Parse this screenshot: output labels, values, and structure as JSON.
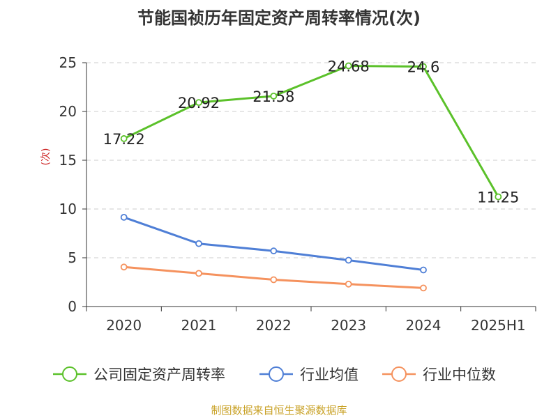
{
  "chart_data": {
    "type": "line",
    "title": "节能国祯历年固定资产周转率情况(次)",
    "ylabel": "(次)",
    "xlabel": "",
    "categories": [
      "2020",
      "2021",
      "2022",
      "2023",
      "2024",
      "2025H1"
    ],
    "yticks": [
      "0",
      "5",
      "10",
      "15",
      "20",
      "25"
    ],
    "ylim": [
      0,
      25
    ],
    "grid": true,
    "legend_position": "bottom",
    "series": [
      {
        "name": "公司固定资产周转率",
        "color": "#5bc12a",
        "values": [
          17.22,
          20.92,
          21.58,
          24.68,
          24.6,
          11.25
        ],
        "labels": [
          "17.22",
          "20.92",
          "21.58",
          "24.68",
          "24.6",
          "11.25"
        ]
      },
      {
        "name": "行业均值",
        "color": "#4f7fd6",
        "values": [
          9.15,
          6.45,
          5.7,
          4.75,
          3.75,
          null
        ]
      },
      {
        "name": "行业中位数",
        "color": "#f5925e",
        "values": [
          4.05,
          3.4,
          2.75,
          2.3,
          1.9,
          null
        ]
      }
    ]
  },
  "source": "制图数据来自恒生聚源数据库"
}
